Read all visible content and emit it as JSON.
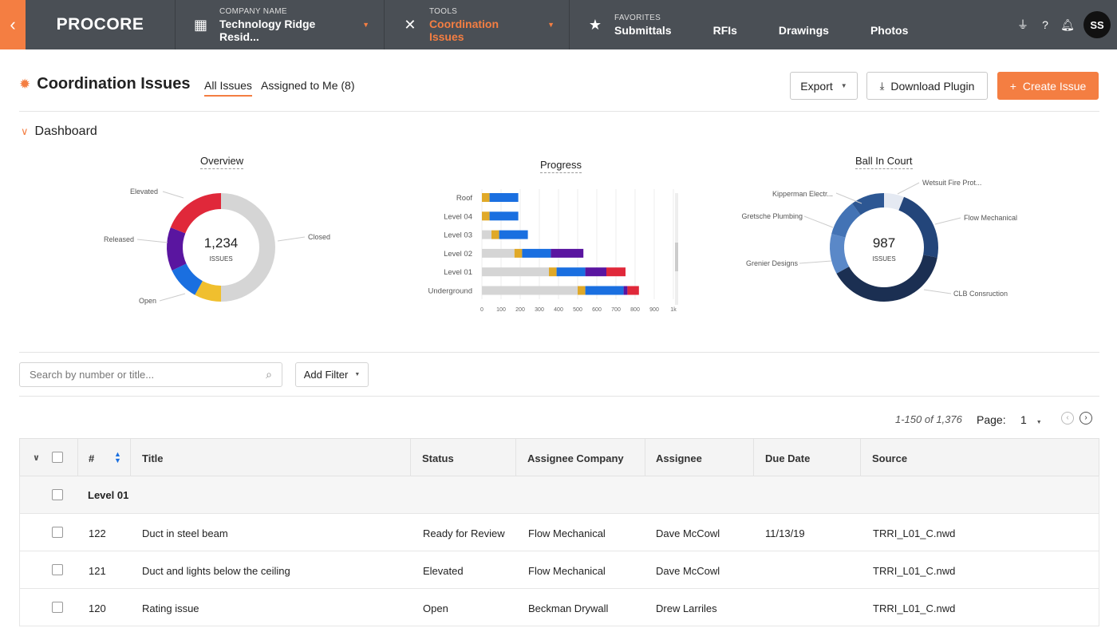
{
  "nav": {
    "back_icon": "chevron-left-icon",
    "logo": "PROCORE",
    "company_label": "COMPANY NAME",
    "company_value": "Technology Ridge Resid...",
    "tools_label": "TOOLS",
    "tools_value": "Coordination Issues",
    "favorites_label": "FAVORITES",
    "favorites": [
      "Submittals",
      "RFIs",
      "Drawings",
      "Photos"
    ],
    "avatar_initials": "SS"
  },
  "header": {
    "title": "Coordination Issues",
    "tabs": [
      "All Issues",
      "Assigned to Me (8)"
    ],
    "export_label": "Export",
    "download_label": "Download Plugin",
    "create_label": "Create Issue"
  },
  "dashboard": {
    "toggle_label": "Dashboard",
    "overview": {
      "title": "Overview",
      "total": "1,234",
      "total_label": "ISSUES",
      "labels": [
        "Elevated",
        "Released",
        "Open",
        "Closed"
      ]
    },
    "progress": {
      "title": "Progress",
      "rows": [
        "Roof",
        "Level 04",
        "Level 03",
        "Level 02",
        "Level 01",
        "Underground"
      ],
      "ticks": [
        "0",
        "100",
        "200",
        "300",
        "400",
        "500",
        "600",
        "700",
        "800",
        "900",
        "1k"
      ]
    },
    "ballincourt": {
      "title": "Ball In Court",
      "total": "987",
      "total_label": "ISSUES",
      "labels": [
        "Kipperman Electr...",
        "Wetsuit Fire Prot...",
        "Gretsche Plumbing",
        "Flow Mechanical",
        "Grenier Designs",
        "CLB Consruction"
      ]
    }
  },
  "chart_data": [
    {
      "type": "pie",
      "title": "Overview",
      "categories": [
        "Closed",
        "Open (yellow)",
        "Open",
        "Released",
        "Elevated"
      ],
      "values": [
        50,
        8,
        10,
        13,
        19
      ]
    },
    {
      "type": "bar",
      "title": "Progress",
      "categories": [
        "Roof",
        "Level 04",
        "Level 03",
        "Level 02",
        "Level 01",
        "Underground"
      ],
      "series": [
        {
          "values": [
            0,
            0,
            50,
            170,
            350,
            500
          ]
        },
        {
          "values": [
            40,
            40,
            40,
            40,
            40,
            40
          ]
        },
        {
          "values": [
            150,
            150,
            150,
            150,
            150,
            200
          ]
        },
        {
          "values": [
            0,
            0,
            0,
            170,
            110,
            20
          ]
        },
        {
          "values": [
            0,
            0,
            0,
            0,
            100,
            60
          ]
        }
      ],
      "xlim": [
        0,
        1000
      ]
    },
    {
      "type": "pie",
      "title": "Ball In Court",
      "categories": [
        "Wetsuit Fire Prot...",
        "Flow Mechanical",
        "CLB Consruction",
        "Grenier Designs",
        "Gretsche Plumbing",
        "Kipperman Electr..."
      ],
      "values": [
        6,
        22,
        39,
        12,
        11,
        10
      ]
    }
  ],
  "colors": {
    "accent": "#f47e42",
    "closed": "#d5d5d5",
    "yellow": "#f0bf2e",
    "blue": "#1a6fe0",
    "purple": "#5a15a0",
    "red": "#e0283a",
    "gold": "#e0a928"
  },
  "toolbar": {
    "search_placeholder": "Search by number or title...",
    "filter_label": "Add Filter"
  },
  "pagination": {
    "range": "1-150 of 1,376",
    "page_label": "Page:",
    "page_value": "1"
  },
  "table": {
    "headers": [
      "#",
      "Title",
      "Status",
      "Assignee Company",
      "Assignee",
      "Due Date",
      "Source"
    ],
    "group": "Level 01",
    "rows": [
      {
        "num": "122",
        "title": "Duct in steel beam",
        "status": "Ready for Review",
        "company": "Flow Mechanical",
        "assignee": "Dave McCowl",
        "due": "11/13/19",
        "source": "TRRI_L01_C.nwd"
      },
      {
        "num": "121",
        "title": "Duct and lights below the ceiling",
        "status": "Elevated",
        "company": "Flow Mechanical",
        "assignee": "Dave McCowl",
        "due": "",
        "source": "TRRI_L01_C.nwd"
      },
      {
        "num": "120",
        "title": "Rating issue",
        "status": "Open",
        "company": "Beckman Drywall",
        "assignee": "Drew Larriles",
        "due": "",
        "source": "TRRI_L01_C.nwd"
      }
    ]
  }
}
